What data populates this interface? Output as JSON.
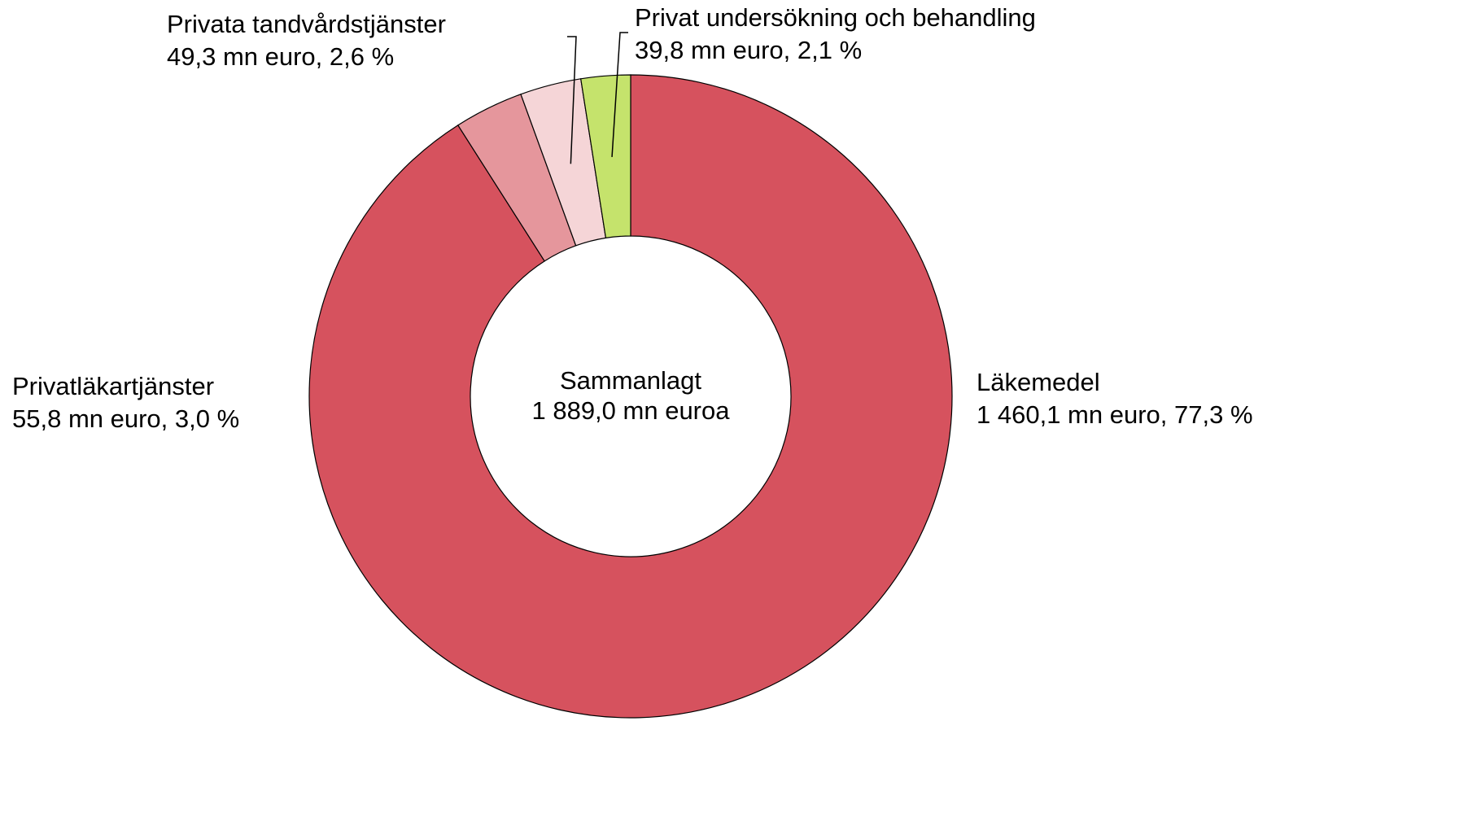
{
  "chart_data": {
    "type": "donut",
    "center_title": "Sammanlagt",
    "center_text": "1 889,0 mn euroa",
    "categories": [
      "Läkemedel",
      "Privatläkartjänster",
      "Privata tandvårdstjänster",
      "Privat undersökning och behandling"
    ],
    "values": [
      1460.1,
      55.8,
      49.3,
      39.8
    ],
    "value_labels": [
      "1 460,1 mn euro, 77,3 %",
      "55,8 mn euro, 3,0 %",
      "49,3 mn euro, 2,6 %",
      "39,8 mn euro, 2,1 %"
    ],
    "colors": [
      "#d6525e",
      "#e5969c",
      "#f5d5d7",
      "#c5e36c"
    ]
  }
}
